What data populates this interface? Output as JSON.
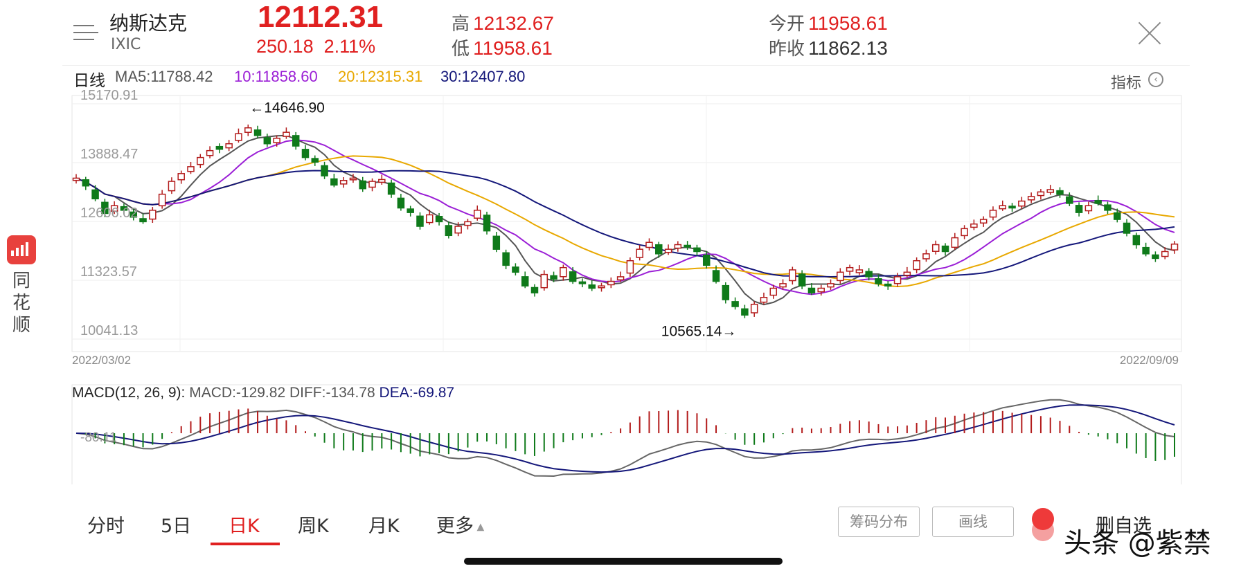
{
  "header": {
    "name": "纳斯达克",
    "code": "IXIC",
    "price": "12112.31",
    "change": "250.18",
    "change_pct": "2.11%",
    "high_label": "高",
    "high": "12132.67",
    "low_label": "低",
    "low": "11958.61",
    "open_label": "今开",
    "open": "11958.61",
    "prev_label": "昨收",
    "prev_close": "11862.13"
  },
  "ma_bar": {
    "period": "日线",
    "ma5": "MA5:11788.42",
    "ma10": "10:11858.60",
    "ma20": "20:12315.31",
    "ma30": "30:12407.80",
    "indicator": "指标",
    "colors": {
      "ma5": "#555555",
      "ma10": "#9b1fd6",
      "ma20": "#e8a800",
      "ma30": "#14177a"
    }
  },
  "chart_data": [
    {
      "type": "candlestick",
      "yticks": [
        "15170.91",
        "13888.47",
        "12606.02",
        "11323.57",
        "10041.13"
      ],
      "ylim": [
        10041.13,
        15170.91
      ],
      "x_start": "2022/03/02",
      "x_end": "2022/09/09",
      "annotation_high": "←14646.90",
      "annotation_low": "10565.14→",
      "up_color": "#b31b1b",
      "down_color": "#0f7a1a",
      "close_points": [
        13550,
        13380,
        13100,
        12780,
        12950,
        12850,
        12700,
        12600,
        12850,
        13200,
        13480,
        13650,
        13800,
        14000,
        14150,
        14180,
        14300,
        14520,
        14646.9,
        14480,
        14300,
        14420,
        14550,
        14250,
        14000,
        13900,
        13600,
        13400,
        13500,
        13550,
        13320,
        13480,
        13520,
        13200,
        12900,
        12800,
        12500,
        12750,
        12600,
        12300,
        12500,
        12600,
        12850,
        12400,
        12000,
        11650,
        11500,
        11200,
        11050,
        11450,
        11350,
        11600,
        11300,
        11250,
        11150,
        11200,
        11300,
        11400,
        11750,
        12000,
        12150,
        11900,
        12000,
        12100,
        12050,
        11950,
        11650,
        11300,
        10900,
        10750,
        10565.14,
        10800,
        10950,
        11150,
        11250,
        11550,
        11200,
        11050,
        11150,
        11250,
        11500,
        11600,
        11550,
        11400,
        11250,
        11200,
        11400,
        11500,
        11750,
        11900,
        12100,
        11950,
        12250,
        12450,
        12550,
        12650,
        12850,
        12950,
        12900,
        13050,
        13150,
        13250,
        13300,
        13200,
        13000,
        12800,
        12950,
        13000,
        12850,
        12650,
        12350,
        12100,
        11900,
        11800,
        11950,
        12112.31
      ]
    },
    {
      "type": "macd",
      "label": "MACD(12, 26, 9):",
      "macd": "MACD:-129.82",
      "diff": "DIFF:-134.78",
      "dea": "DEA:-69.87",
      "ytick": "-80.11"
    }
  ],
  "tabs": [
    "分时",
    "5日",
    "日K",
    "周K",
    "月K",
    "更多"
  ],
  "buttons": {
    "chips": "筹码分布",
    "draw": "画线",
    "fav": "删自选"
  },
  "sidebar": {
    "label": "同花顺"
  },
  "watermark": "头条 @紫禁"
}
